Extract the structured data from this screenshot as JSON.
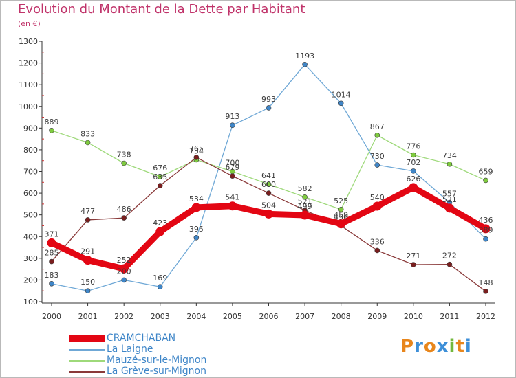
{
  "title": "Evolution du Montant de la Dette par Habitant",
  "subtitle": "(en €)",
  "logo": {
    "text": "Proxiti",
    "colors": [
      "#e8861c",
      "#3d8fd8",
      "#e8861c",
      "#3d8fd8",
      "#72b83c",
      "#e8861c",
      "#3d8fd8"
    ]
  },
  "chart_data": {
    "type": "line",
    "x": [
      "2000",
      "2001",
      "2002",
      "2003",
      "2004",
      "2005",
      "2006",
      "2007",
      "2008",
      "2009",
      "2010",
      "2011",
      "2012"
    ],
    "ylim": [
      100,
      1300
    ],
    "yticks": [
      "100",
      "200",
      "300",
      "400",
      "500",
      "600",
      "700",
      "800",
      "900",
      "1000",
      "1100",
      "1200",
      "1300"
    ],
    "grid": false,
    "legend_position": "bottom-left",
    "series": [
      {
        "name": "CRAMCHABAN",
        "color": "#e30613",
        "width": 9,
        "values": [
          371,
          291,
          252,
          423,
          534,
          541,
          504,
          499,
          459,
          540,
          626,
          531,
          436
        ],
        "labels": [
          "371",
          "291",
          "252",
          "423",
          "534",
          "541",
          "504",
          "499",
          "459",
          "540",
          "626",
          "531",
          "436"
        ]
      },
      {
        "name": "La Laigne",
        "color": "#6fa8d6",
        "point": "#3f86c8",
        "width": 1.3,
        "values": [
          183,
          150,
          200,
          169,
          395,
          913,
          993,
          1193,
          1014,
          730,
          702,
          557,
          389
        ],
        "labels": [
          "183",
          "150",
          "200",
          "169",
          "395",
          "913",
          "993",
          "1193",
          "1014",
          "730",
          "702",
          "557",
          "389"
        ]
      },
      {
        "name": "Mauzé-sur-le-Mignon",
        "color": "#9ed97a",
        "point": "#7fcb3f",
        "width": 1.3,
        "values": [
          889,
          833,
          738,
          676,
          754,
          700,
          641,
          582,
          525,
          867,
          776,
          734,
          659
        ],
        "labels": [
          "889",
          "833",
          "738",
          "676",
          "754",
          "700",
          "641",
          "582",
          "525",
          "867",
          "776",
          "734",
          "659"
        ]
      },
      {
        "name": "La Grève-sur-Mignon",
        "color": "#8a3a3a",
        "point": "#7a1e1e",
        "width": 1.3,
        "values": [
          285,
          477,
          486,
          635,
          765,
          679,
          600,
          521,
          450,
          336,
          271,
          272,
          148
        ],
        "labels": [
          "285",
          "477",
          "486",
          "635",
          "765",
          "679",
          "600",
          "521",
          "450",
          "336",
          "271",
          "272",
          "148"
        ]
      }
    ]
  }
}
